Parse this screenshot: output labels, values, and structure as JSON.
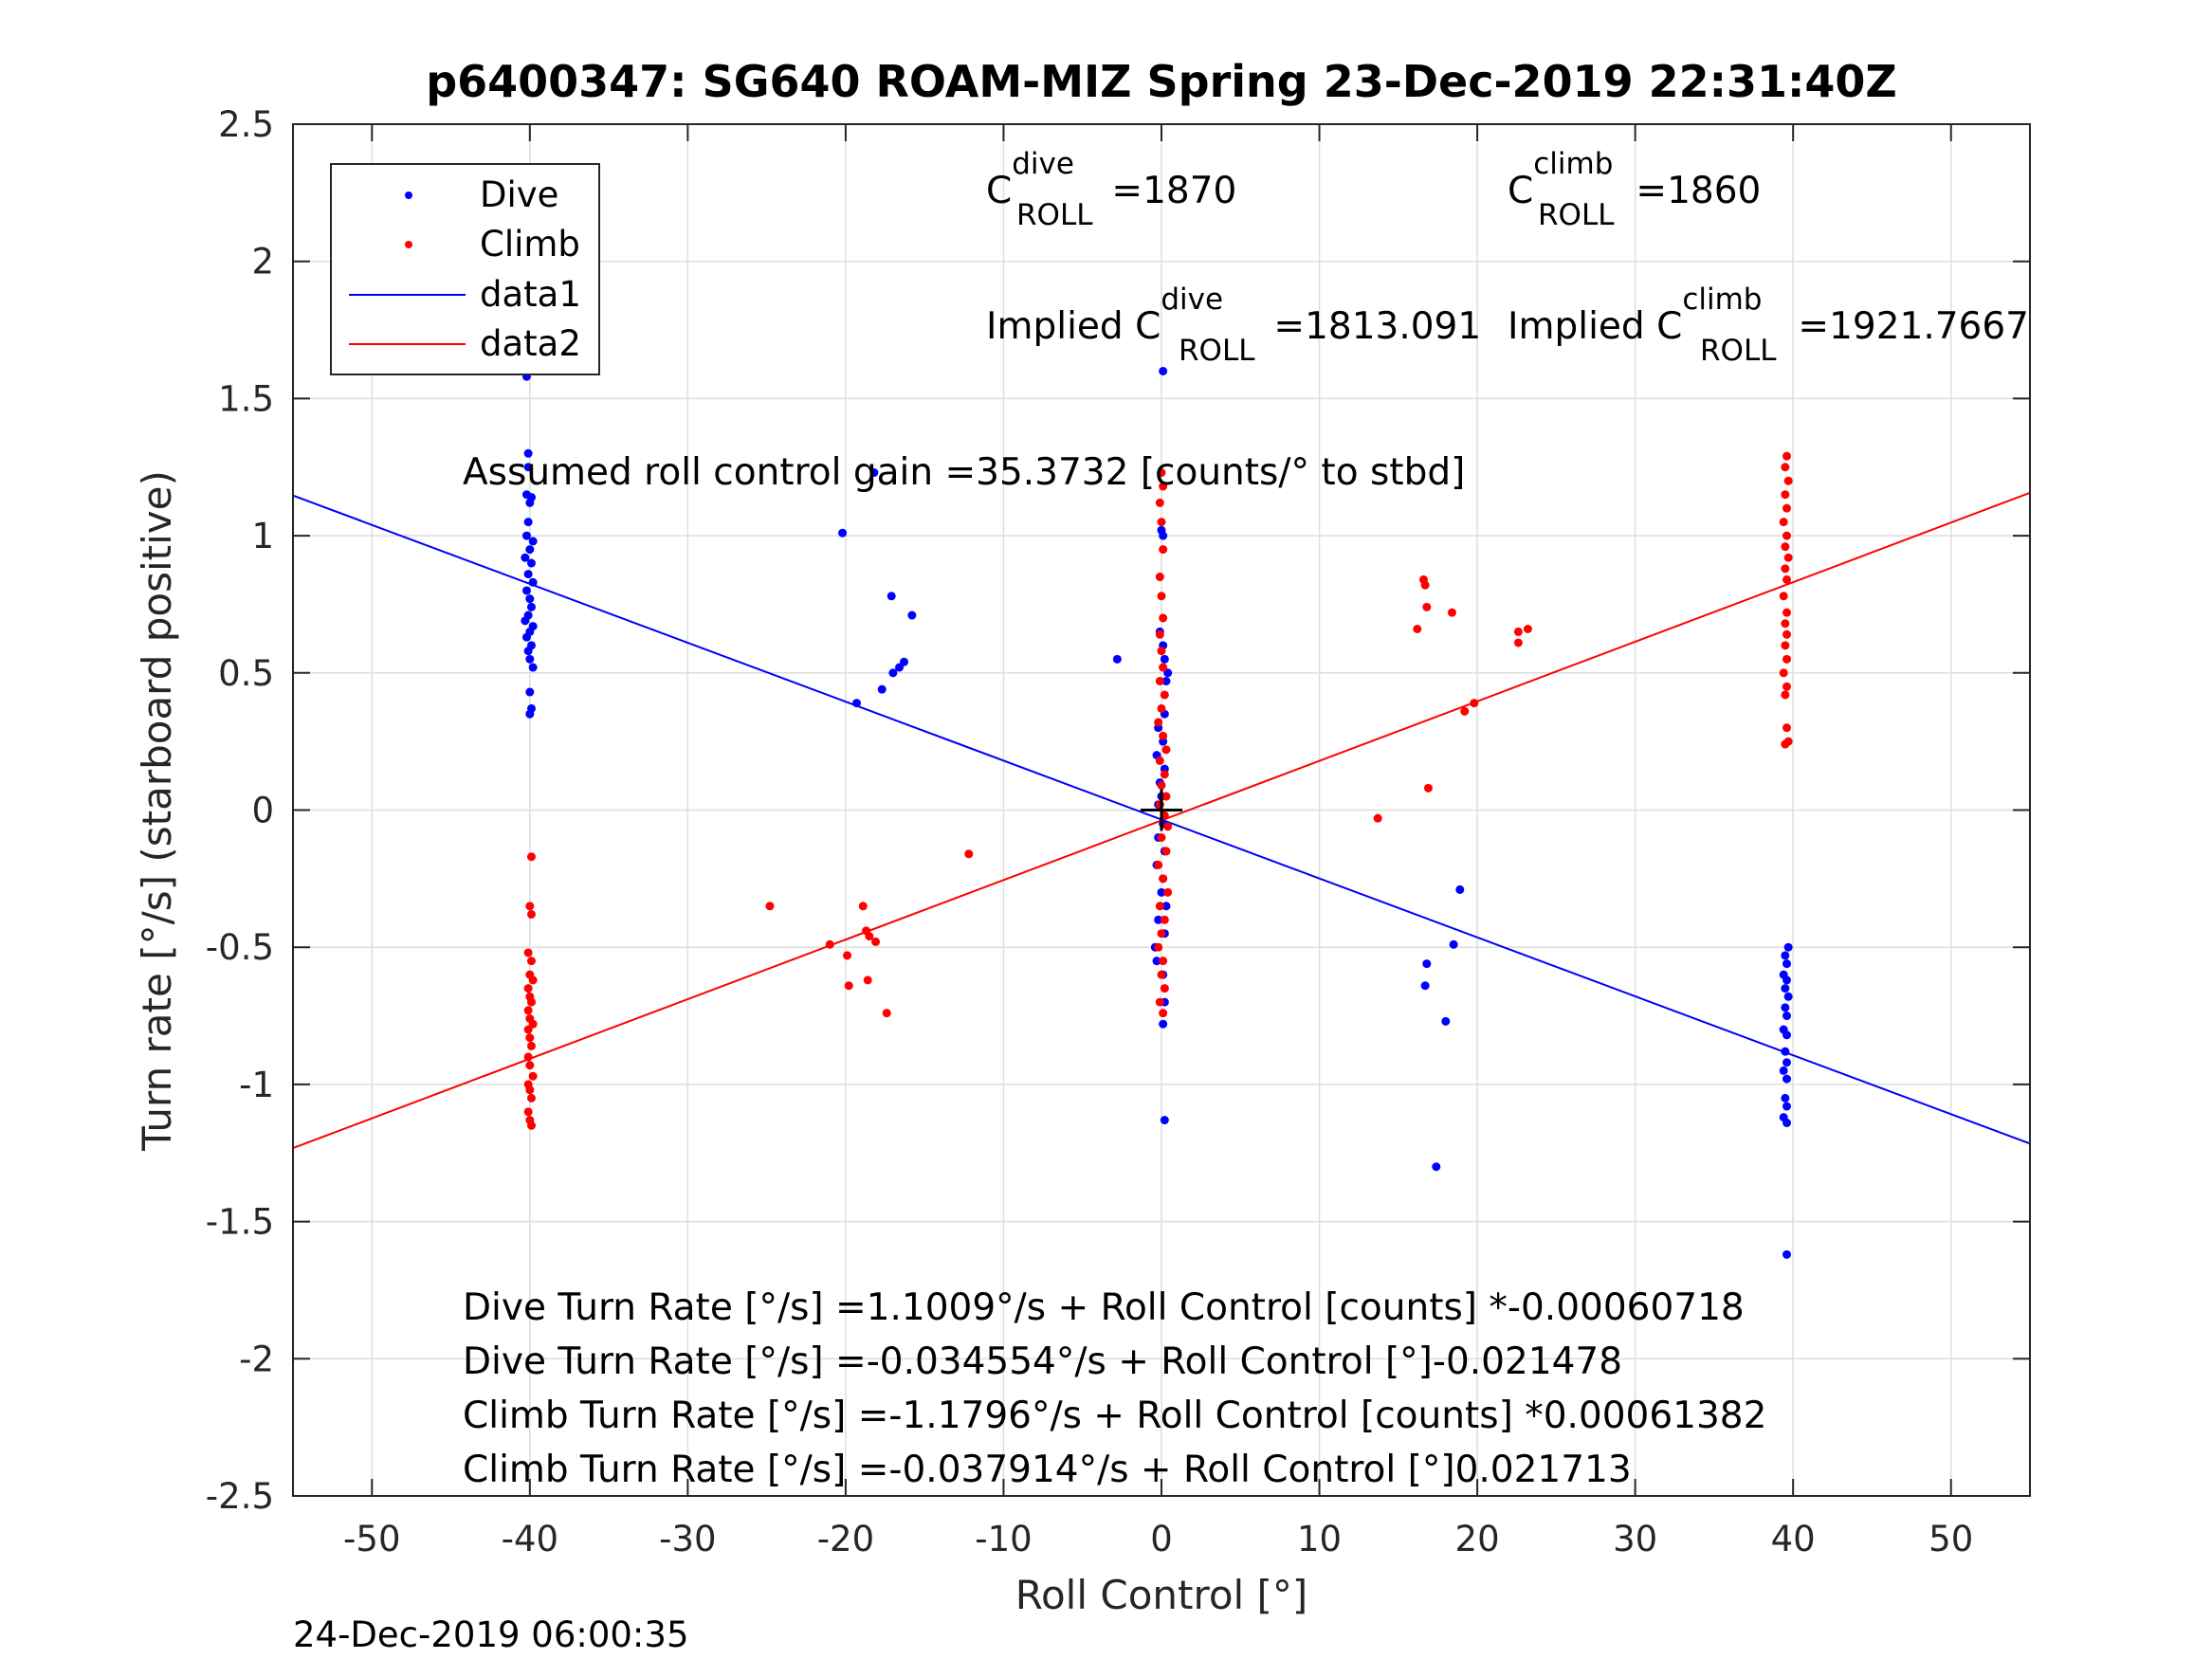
{
  "chart_data": {
    "type": "scatter",
    "title": "p6400347: SG640 ROAM-MIZ Spring 23-Dec-2019 22:31:40Z",
    "xlabel": "Roll Control [°]",
    "ylabel": "Turn rate [°/s] (starboard positive)",
    "xlim": [
      -55,
      55
    ],
    "ylim": [
      -2.5,
      2.5
    ],
    "xticks": [
      -50,
      -40,
      -30,
      -20,
      -10,
      0,
      10,
      20,
      30,
      40,
      50
    ],
    "yticks": [
      -2.5,
      -2,
      -1.5,
      -1,
      -0.5,
      0,
      0.5,
      1,
      1.5,
      2,
      2.5
    ],
    "grid": true,
    "legend_position": "top-left",
    "legend": [
      "Dive",
      "Climb",
      "data1",
      "data2"
    ],
    "colors": {
      "dive": "#0000ff",
      "climb": "#ff0000",
      "axis": "#262626",
      "grid": "#dedede",
      "crosshair": "#000000"
    },
    "series": [
      {
        "name": "Dive",
        "kind": "points",
        "color": "#0000ff",
        "points": [
          [
            -40.2,
            1.58
          ],
          [
            -40.1,
            1.3
          ],
          [
            -40.1,
            1.25
          ],
          [
            -40.2,
            1.15
          ],
          [
            -39.9,
            1.14
          ],
          [
            -40.0,
            1.12
          ],
          [
            -40.1,
            1.05
          ],
          [
            -40.2,
            1.0
          ],
          [
            -39.8,
            0.98
          ],
          [
            -40.0,
            0.95
          ],
          [
            -40.3,
            0.92
          ],
          [
            -39.9,
            0.9
          ],
          [
            -40.1,
            0.86
          ],
          [
            -39.8,
            0.83
          ],
          [
            -40.2,
            0.8
          ],
          [
            -40.0,
            0.77
          ],
          [
            -39.9,
            0.74
          ],
          [
            -40.1,
            0.71
          ],
          [
            -40.3,
            0.69
          ],
          [
            -39.8,
            0.67
          ],
          [
            -40.0,
            0.65
          ],
          [
            -40.2,
            0.63
          ],
          [
            -39.9,
            0.6
          ],
          [
            -40.1,
            0.58
          ],
          [
            -40.0,
            0.55
          ],
          [
            -39.8,
            0.52
          ],
          [
            -40.0,
            0.43
          ],
          [
            -39.9,
            0.37
          ],
          [
            -40.0,
            0.35
          ],
          [
            -20.2,
            1.01
          ],
          [
            -17.1,
            0.78
          ],
          [
            -15.8,
            0.71
          ],
          [
            -16.3,
            0.54
          ],
          [
            -16.6,
            0.52
          ],
          [
            -17.0,
            0.5
          ],
          [
            -17.7,
            0.44
          ],
          [
            -19.3,
            0.39
          ],
          [
            -2.8,
            0.55
          ],
          [
            -18.2,
            1.23
          ],
          [
            0.1,
            1.6
          ],
          [
            0.0,
            1.02
          ],
          [
            0.1,
            1.0
          ],
          [
            -0.1,
            0.65
          ],
          [
            0.1,
            0.6
          ],
          [
            0.2,
            0.55
          ],
          [
            0.4,
            0.5
          ],
          [
            0.3,
            0.47
          ],
          [
            0.2,
            0.35
          ],
          [
            -0.2,
            0.3
          ],
          [
            0.1,
            0.25
          ],
          [
            -0.3,
            0.2
          ],
          [
            0.2,
            0.15
          ],
          [
            -0.1,
            0.1
          ],
          [
            0.0,
            0.05
          ],
          [
            -0.2,
            0.02
          ],
          [
            0.1,
            -0.05
          ],
          [
            -0.2,
            -0.1
          ],
          [
            0.2,
            -0.15
          ],
          [
            -0.3,
            -0.2
          ],
          [
            0.1,
            -0.25
          ],
          [
            0.0,
            -0.3
          ],
          [
            0.3,
            -0.35
          ],
          [
            -0.2,
            -0.4
          ],
          [
            0.2,
            -0.45
          ],
          [
            -0.4,
            -0.5
          ],
          [
            -0.3,
            -0.55
          ],
          [
            0.1,
            -0.6
          ],
          [
            0.2,
            -0.7
          ],
          [
            0.1,
            -0.78
          ],
          [
            0.2,
            -1.13
          ],
          [
            39.7,
            -0.5
          ],
          [
            39.5,
            -0.53
          ],
          [
            39.6,
            -0.56
          ],
          [
            39.4,
            -0.6
          ],
          [
            39.6,
            -0.62
          ],
          [
            39.5,
            -0.65
          ],
          [
            39.7,
            -0.68
          ],
          [
            39.5,
            -0.72
          ],
          [
            39.6,
            -0.75
          ],
          [
            39.4,
            -0.8
          ],
          [
            39.6,
            -0.82
          ],
          [
            39.5,
            -0.88
          ],
          [
            39.6,
            -0.92
          ],
          [
            39.4,
            -0.95
          ],
          [
            39.6,
            -0.98
          ],
          [
            39.5,
            -1.05
          ],
          [
            39.6,
            -1.08
          ],
          [
            39.4,
            -1.12
          ],
          [
            39.6,
            -1.14
          ],
          [
            39.6,
            -1.62
          ],
          [
            18.9,
            -0.29
          ],
          [
            16.8,
            -0.56
          ],
          [
            16.7,
            -0.64
          ],
          [
            18.5,
            -0.49
          ],
          [
            18.0,
            -0.77
          ],
          [
            17.4,
            -1.3
          ]
        ]
      },
      {
        "name": "Climb",
        "kind": "points",
        "color": "#ff0000",
        "points": [
          [
            -39.9,
            -0.17
          ],
          [
            -40.0,
            -0.35
          ],
          [
            -39.9,
            -0.38
          ],
          [
            -40.1,
            -0.52
          ],
          [
            -39.9,
            -0.55
          ],
          [
            -40.0,
            -0.6
          ],
          [
            -39.8,
            -0.62
          ],
          [
            -40.1,
            -0.65
          ],
          [
            -40.0,
            -0.68
          ],
          [
            -39.9,
            -0.7
          ],
          [
            -40.1,
            -0.73
          ],
          [
            -40.0,
            -0.76
          ],
          [
            -39.8,
            -0.78
          ],
          [
            -40.1,
            -0.8
          ],
          [
            -40.0,
            -0.83
          ],
          [
            -39.9,
            -0.86
          ],
          [
            -40.1,
            -0.9
          ],
          [
            -40.0,
            -0.93
          ],
          [
            -39.8,
            -0.97
          ],
          [
            -40.1,
            -1.0
          ],
          [
            -40.0,
            -1.02
          ],
          [
            -39.9,
            -1.05
          ],
          [
            -40.1,
            -1.1
          ],
          [
            -40.0,
            -1.13
          ],
          [
            -39.9,
            -1.15
          ],
          [
            -24.8,
            -0.35
          ],
          [
            -21.0,
            -0.49
          ],
          [
            -19.9,
            -0.53
          ],
          [
            -18.9,
            -0.35
          ],
          [
            -18.7,
            -0.44
          ],
          [
            -18.5,
            -0.46
          ],
          [
            -18.1,
            -0.48
          ],
          [
            -19.8,
            -0.64
          ],
          [
            -18.6,
            -0.62
          ],
          [
            -17.4,
            -0.74
          ],
          [
            -12.2,
            -0.16
          ],
          [
            0.0,
            1.23
          ],
          [
            0.1,
            1.18
          ],
          [
            -0.1,
            1.12
          ],
          [
            0.0,
            1.05
          ],
          [
            0.1,
            0.95
          ],
          [
            -0.1,
            0.85
          ],
          [
            0.0,
            0.78
          ],
          [
            0.1,
            0.7
          ],
          [
            -0.1,
            0.64
          ],
          [
            0.0,
            0.58
          ],
          [
            0.1,
            0.52
          ],
          [
            -0.1,
            0.47
          ],
          [
            0.2,
            0.42
          ],
          [
            0.0,
            0.37
          ],
          [
            -0.2,
            0.32
          ],
          [
            0.1,
            0.27
          ],
          [
            0.3,
            0.22
          ],
          [
            -0.1,
            0.18
          ],
          [
            0.2,
            0.13
          ],
          [
            0.0,
            0.09
          ],
          [
            0.3,
            0.05
          ],
          [
            -0.1,
            0.02
          ],
          [
            0.2,
            -0.02
          ],
          [
            0.4,
            -0.06
          ],
          [
            0.0,
            -0.1
          ],
          [
            0.3,
            -0.15
          ],
          [
            -0.2,
            -0.2
          ],
          [
            0.1,
            -0.25
          ],
          [
            0.4,
            -0.3
          ],
          [
            -0.1,
            -0.35
          ],
          [
            0.2,
            -0.4
          ],
          [
            0.0,
            -0.45
          ],
          [
            -0.2,
            -0.5
          ],
          [
            0.1,
            -0.55
          ],
          [
            0.0,
            -0.6
          ],
          [
            0.2,
            -0.65
          ],
          [
            -0.1,
            -0.7
          ],
          [
            0.1,
            -0.74
          ],
          [
            39.6,
            1.29
          ],
          [
            39.5,
            1.25
          ],
          [
            39.7,
            1.2
          ],
          [
            39.5,
            1.15
          ],
          [
            39.6,
            1.1
          ],
          [
            39.4,
            1.05
          ],
          [
            39.6,
            1.0
          ],
          [
            39.5,
            0.96
          ],
          [
            39.7,
            0.92
          ],
          [
            39.5,
            0.88
          ],
          [
            39.6,
            0.84
          ],
          [
            39.4,
            0.78
          ],
          [
            39.6,
            0.72
          ],
          [
            39.5,
            0.68
          ],
          [
            39.6,
            0.64
          ],
          [
            39.5,
            0.6
          ],
          [
            39.6,
            0.55
          ],
          [
            39.4,
            0.5
          ],
          [
            39.6,
            0.45
          ],
          [
            39.5,
            0.42
          ],
          [
            39.6,
            0.3
          ],
          [
            39.7,
            0.25
          ],
          [
            39.5,
            0.24
          ],
          [
            16.6,
            0.84
          ],
          [
            16.7,
            0.82
          ],
          [
            16.8,
            0.74
          ],
          [
            16.2,
            0.66
          ],
          [
            18.4,
            0.72
          ],
          [
            22.6,
            0.65
          ],
          [
            23.2,
            0.66
          ],
          [
            22.6,
            0.61
          ],
          [
            19.8,
            0.39
          ],
          [
            19.2,
            0.36
          ],
          [
            16.9,
            0.08
          ],
          [
            13.7,
            -0.03
          ]
        ]
      },
      {
        "name": "data1",
        "kind": "line",
        "color": "#0000ff",
        "intercept": -0.034554,
        "slope": -0.021478
      },
      {
        "name": "data2",
        "kind": "line",
        "color": "#ff0000",
        "intercept": -0.037914,
        "slope": 0.021713
      }
    ],
    "annotations": {
      "c_roll_dive_prefix": "C",
      "c_roll_dive_sup": "dive",
      "c_roll_dive_sub": "ROLL",
      "c_roll_dive_value": " =1870",
      "c_roll_climb_prefix": "C",
      "c_roll_climb_sup": "climb",
      "c_roll_climb_sub": "ROLL",
      "c_roll_climb_value": " =1860",
      "implied_dive_prefix": "Implied C",
      "implied_dive_sup": "dive",
      "implied_dive_sub": "ROLL",
      "implied_dive_value": " =1813.091",
      "implied_climb_prefix": "Implied C",
      "implied_climb_sup": "climb",
      "implied_climb_sub": "ROLL",
      "implied_climb_value": " =1921.7667",
      "gain": "Assumed roll control gain =35.3732 [counts/° to stbd]",
      "fit1": "Dive Turn Rate [°/s] =1.1009°/s + Roll Control [counts] *-0.00060718",
      "fit2": "Dive Turn Rate [°/s] =-0.034554°/s + Roll Control [°]-0.021478",
      "fit3": "Climb Turn Rate [°/s] =-1.1796°/s + Roll Control [counts] *0.00061382",
      "fit4": "Climb Turn Rate [°/s] =-0.037914°/s + Roll Control [°]0.021713"
    },
    "timestamp": "24-Dec-2019 06:00:35"
  }
}
